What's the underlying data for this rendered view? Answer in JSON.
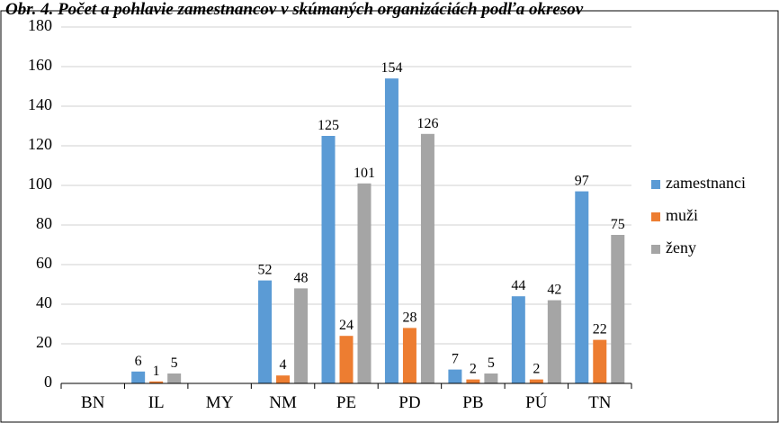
{
  "chart_data": {
    "type": "bar",
    "title": "Obr. 4. Počet a pohlavie zamestnancov v skúmaných organizáciách podľa okresov",
    "categories": [
      "BN",
      "IL",
      "MY",
      "NM",
      "PE",
      "PD",
      "PB",
      "PÚ",
      "TN"
    ],
    "series": [
      {
        "name": "zamestnanci",
        "color": "#5b9bd5",
        "values": [
          0,
          6,
          0,
          52,
          125,
          154,
          7,
          44,
          97
        ]
      },
      {
        "name": "muži",
        "color": "#ed7d31",
        "values": [
          0,
          1,
          0,
          4,
          24,
          28,
          2,
          2,
          22
        ]
      },
      {
        "name": "ženy",
        "color": "#a5a5a5",
        "values": [
          0,
          5,
          0,
          48,
          101,
          126,
          5,
          42,
          75
        ]
      }
    ],
    "yticks": [
      "0",
      "20",
      "40",
      "60",
      "80",
      "100",
      "120",
      "140",
      "160",
      "180"
    ],
    "ylim": [
      0,
      180
    ],
    "grid": true,
    "legend_position": "right"
  }
}
